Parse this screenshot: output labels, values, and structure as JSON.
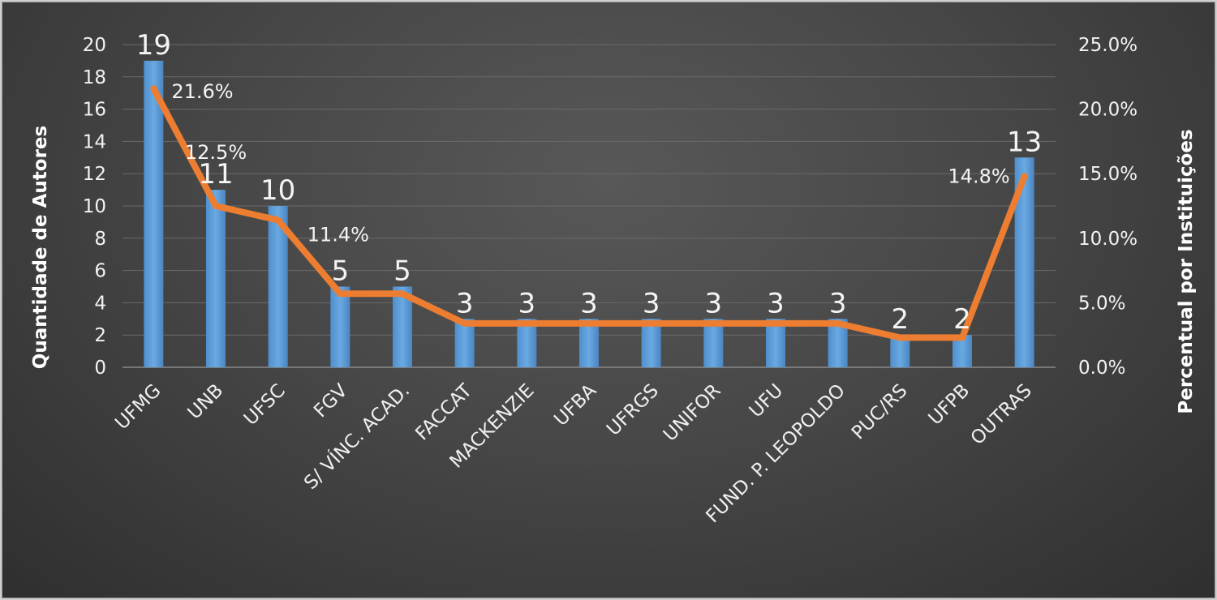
{
  "chart_data": {
    "type": "bar",
    "title": "",
    "categories": [
      "UFMG",
      "UNB",
      "UFSC",
      "FGV",
      "S/ VÍNC. ACAD.",
      "FACCAT",
      "MACKENZIE",
      "UFBA",
      "UFRGS",
      "UNIFOR",
      "UFU",
      "FUND. P. LEOPOLDO",
      "PUC/RS",
      "UFPB",
      "OUTRAS"
    ],
    "series": [
      {
        "type": "bar",
        "axis": "left",
        "values": [
          19,
          11,
          10,
          5,
          5,
          3,
          3,
          3,
          3,
          3,
          3,
          3,
          2,
          2,
          13
        ],
        "data_labels": [
          "19",
          "11",
          "10",
          "5",
          "5",
          "3",
          "3",
          "3",
          "3",
          "3",
          "3",
          "3",
          "2",
          "2",
          "13"
        ]
      },
      {
        "type": "line",
        "axis": "right",
        "values": [
          21.6,
          12.5,
          11.4,
          5.7,
          5.7,
          3.4,
          3.4,
          3.4,
          3.4,
          3.4,
          3.4,
          3.4,
          2.3,
          2.3,
          14.8
        ],
        "data_labels": [
          {
            "index": 0,
            "text": "21.6%"
          },
          {
            "index": 1,
            "text": "12.5%"
          },
          {
            "index": 2,
            "text": "11.4%"
          },
          {
            "index": 14,
            "text": "14.8%"
          }
        ]
      }
    ],
    "ylabel": "Quantidade de Autores",
    "ylabel_right": "Percentual por Instituições",
    "ylim": [
      0,
      20
    ],
    "y_ticks": [
      "0",
      "2",
      "4",
      "6",
      "8",
      "10",
      "12",
      "14",
      "16",
      "18",
      "20"
    ],
    "ylim_right": [
      0,
      25
    ],
    "y_ticks_right": [
      "0.0%",
      "5.0%",
      "10.0%",
      "15.0%",
      "20.0%",
      "25.0%"
    ],
    "grid": true,
    "legend": "none",
    "colors": {
      "bar": "#5b9bd5",
      "line": "#ed7d31",
      "text": "#f2f2f2",
      "grid": "#6a6a6a"
    }
  }
}
